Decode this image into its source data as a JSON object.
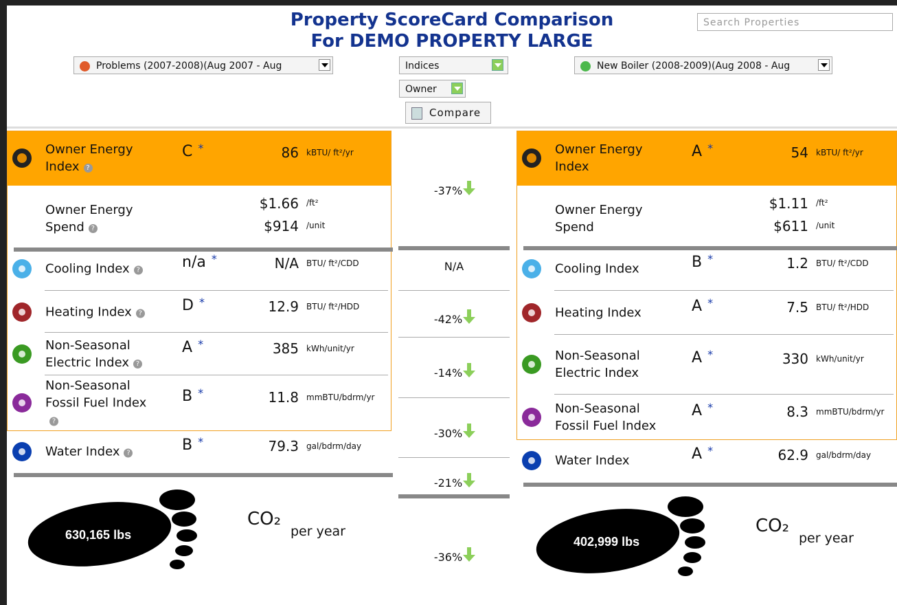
{
  "header": {
    "title": "Property ScoreCard Comparison",
    "subtitle": "For DEMO PROPERTY LARGE",
    "search_placeholder": "Search Properties"
  },
  "controls": {
    "left_period": "Problems (2007-2008)(Aug 2007 - Aug",
    "view": "Indices",
    "perspective": "Owner",
    "compare": "Compare",
    "right_period": "New Boiler (2008-2009)(Aug 2008 - Aug"
  },
  "left": {
    "index": {
      "label": "Owner Energy Index",
      "grade": "C",
      "note": "*",
      "value": "86",
      "unit": "kBTU/ ft²/yr"
    },
    "spend": {
      "label": "Owner Energy Spend",
      "per_area": "$1.66",
      "per_area_unit": "/ft²",
      "per_unit": "$914",
      "per_unit_unit": "/unit"
    },
    "rows": [
      {
        "label": "Cooling Index",
        "grade": "n/a",
        "note": "*",
        "value": "N/A",
        "unit": "BTU/ ft²/CDD"
      },
      {
        "label": "Heating Index",
        "grade": "D",
        "note": "*",
        "value": "12.9",
        "unit": "BTU/ ft²/HDD"
      },
      {
        "label": "Non-Seasonal Electric Index",
        "grade": "A",
        "note": "*",
        "value": "385",
        "unit": "kWh/unit/yr"
      },
      {
        "label": "Non-Seasonal Fossil Fuel Index",
        "grade": "B",
        "note": "*",
        "value": "11.8",
        "unit": "mmBTU/bdrm/yr"
      },
      {
        "label": "Water Index",
        "grade": "B",
        "note": "*",
        "value": "79.3",
        "unit": "gal/bdrm/day"
      }
    ],
    "co2_amount": "630,165 lbs"
  },
  "right": {
    "index": {
      "label": "Owner Energy Index",
      "grade": "A",
      "note": "*",
      "value": "54",
      "unit": "kBTU/ ft²/yr"
    },
    "spend": {
      "label": "Owner Energy Spend",
      "per_area": "$1.11",
      "per_area_unit": "/ft²",
      "per_unit": "$611",
      "per_unit_unit": "/unit"
    },
    "rows": [
      {
        "label": "Cooling Index",
        "grade": "B",
        "note": "*",
        "value": "1.2",
        "unit": "BTU/ ft²/CDD"
      },
      {
        "label": "Heating Index",
        "grade": "A",
        "note": "*",
        "value": "7.5",
        "unit": "BTU/ ft²/HDD"
      },
      {
        "label": "Non-Seasonal Electric Index",
        "grade": "A",
        "note": "*",
        "value": "330",
        "unit": "kWh/unit/yr"
      },
      {
        "label": "Non-Seasonal Fossil Fuel Index",
        "grade": "A",
        "note": "*",
        "value": "8.3",
        "unit": "mmBTU/bdrm/yr"
      },
      {
        "label": "Water Index",
        "grade": "A",
        "note": "*",
        "value": "62.9",
        "unit": "gal/bdrm/day"
      }
    ],
    "co2_amount": "402,999 lbs"
  },
  "co2": {
    "label": "CO₂",
    "period": "per year"
  },
  "changes": [
    "-37%",
    "N/A",
    "-42%",
    "-14%",
    "-30%",
    "-21%",
    "-36%"
  ]
}
